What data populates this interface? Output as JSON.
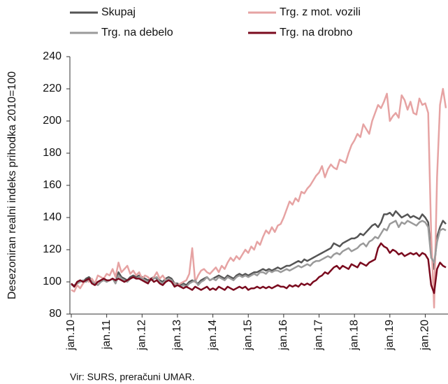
{
  "chart_data": {
    "type": "line",
    "y_label": "Desezoniran realni indeks prihodka 2010=100",
    "source": "Vir: SURS, preračuni UMAR.",
    "legend": "top",
    "categories": [
      "jan.10",
      null,
      null,
      null,
      null,
      null,
      null,
      null,
      null,
      null,
      null,
      null,
      "jan.11",
      null,
      null,
      null,
      null,
      null,
      null,
      null,
      null,
      null,
      null,
      null,
      "jan.12",
      null,
      null,
      null,
      null,
      null,
      null,
      null,
      null,
      null,
      null,
      null,
      "jan.13",
      null,
      null,
      null,
      null,
      null,
      null,
      null,
      null,
      null,
      null,
      null,
      "jan.14",
      null,
      null,
      null,
      null,
      null,
      null,
      null,
      null,
      null,
      null,
      null,
      "jan.15",
      null,
      null,
      null,
      null,
      null,
      null,
      null,
      null,
      null,
      null,
      null,
      "jan.16",
      null,
      null,
      null,
      null,
      null,
      null,
      null,
      null,
      null,
      null,
      null,
      "jan.17",
      null,
      null,
      null,
      null,
      null,
      null,
      null,
      null,
      null,
      null,
      null,
      "jan.18",
      null,
      null,
      null,
      null,
      null,
      null,
      null,
      null,
      null,
      null,
      null,
      "jan.19",
      null,
      null,
      null,
      null,
      null,
      null,
      null,
      null,
      null,
      null,
      null,
      "jan.20",
      null,
      null,
      null,
      null,
      null,
      null,
      null
    ],
    "ylim": [
      80,
      240
    ],
    "yticks": [
      80,
      100,
      120,
      140,
      160,
      180,
      200,
      220,
      240
    ],
    "series": [
      {
        "name": "Skupaj",
        "color": "#555555",
        "values": [
          99,
          97,
          100,
          101,
          100,
          102,
          103,
          101,
          99,
          100,
          101,
          102,
          101,
          101,
          102,
          100,
          106,
          103,
          102,
          101,
          103,
          104,
          103,
          104,
          103,
          102,
          101,
          102,
          103,
          102,
          101,
          100,
          102,
          103,
          102,
          99,
          99,
          98,
          99,
          98,
          100,
          101,
          100,
          99,
          101,
          102,
          103,
          101,
          102,
          103,
          104,
          103,
          102,
          104,
          103,
          102,
          104,
          105,
          104,
          105,
          104,
          105,
          106,
          106,
          107,
          108,
          107,
          108,
          107,
          108,
          109,
          108,
          109,
          110,
          110,
          111,
          112,
          113,
          112,
          114,
          113,
          114,
          115,
          116,
          117,
          118,
          119,
          120,
          121,
          124,
          123,
          122,
          124,
          125,
          126,
          127,
          127,
          128,
          130,
          129,
          131,
          133,
          135,
          136,
          134,
          137,
          142,
          142,
          143,
          141,
          144,
          142,
          140,
          141,
          142,
          140,
          141,
          140,
          139,
          142,
          140,
          137,
          118,
          108,
          128,
          134,
          138,
          136
        ]
      },
      {
        "name": "Trg. z mot. vozili",
        "color": "#e6a3a3",
        "values": [
          95,
          94,
          98,
          96,
          99,
          101,
          100,
          102,
          99,
          104,
          103,
          102,
          105,
          104,
          108,
          103,
          112,
          106,
          108,
          110,
          105,
          107,
          104,
          106,
          102,
          104,
          103,
          101,
          103,
          106,
          102,
          104,
          101,
          102,
          100,
          99,
          98,
          99,
          100,
          101,
          105,
          121,
          100,
          104,
          107,
          108,
          106,
          105,
          107,
          109,
          106,
          110,
          108,
          112,
          115,
          113,
          116,
          114,
          117,
          120,
          118,
          122,
          120,
          125,
          123,
          128,
          132,
          130,
          134,
          131,
          135,
          136,
          140,
          145,
          150,
          148,
          152,
          150,
          156,
          155,
          158,
          160,
          163,
          166,
          168,
          172,
          165,
          170,
          173,
          171,
          170,
          176,
          175,
          174,
          180,
          185,
          188,
          192,
          190,
          198,
          195,
          192,
          200,
          205,
          210,
          208,
          212,
          217,
          200,
          203,
          205,
          202,
          216,
          213,
          207,
          212,
          205,
          204,
          214,
          210,
          211,
          205,
          130,
          84,
          165,
          210,
          220,
          208
        ]
      },
      {
        "name": "Trg. na debelo",
        "color": "#9a9a9a",
        "values": [
          98,
          98,
          99,
          100,
          101,
          100,
          102,
          100,
          99,
          98,
          100,
          101,
          100,
          101,
          102,
          99,
          104,
          102,
          101,
          100,
          102,
          103,
          102,
          103,
          102,
          101,
          100,
          101,
          102,
          103,
          100,
          99,
          101,
          102,
          101,
          98,
          98,
          97,
          98,
          97,
          99,
          100,
          101,
          98,
          100,
          101,
          103,
          101,
          102,
          101,
          103,
          102,
          101,
          103,
          102,
          101,
          103,
          104,
          103,
          104,
          103,
          104,
          105,
          104,
          106,
          106,
          105,
          107,
          106,
          107,
          107,
          106,
          107,
          108,
          107,
          108,
          109,
          110,
          109,
          110,
          111,
          110,
          112,
          113,
          113,
          114,
          115,
          116,
          115,
          117,
          118,
          117,
          119,
          120,
          121,
          119,
          120,
          121,
          123,
          124,
          122,
          125,
          126,
          128,
          127,
          130,
          133,
          132,
          136,
          137,
          138,
          134,
          137,
          136,
          138,
          137,
          136,
          135,
          137,
          138,
          137,
          134,
          115,
          112,
          125,
          132,
          133,
          132
        ]
      },
      {
        "name": "Trg. na drobno",
        "color": "#7a0a1e",
        "values": [
          99,
          97,
          100,
          101,
          100,
          101,
          102,
          99,
          98,
          100,
          101,
          102,
          101,
          101,
          102,
          101,
          102,
          101,
          100,
          101,
          102,
          103,
          102,
          102,
          101,
          100,
          99,
          102,
          100,
          101,
          99,
          98,
          100,
          101,
          100,
          97,
          98,
          97,
          96,
          97,
          96,
          95,
          97,
          96,
          95,
          96,
          97,
          95,
          96,
          95,
          97,
          96,
          95,
          97,
          96,
          95,
          96,
          97,
          96,
          97,
          95,
          96,
          96,
          97,
          96,
          97,
          96,
          97,
          96,
          97,
          98,
          97,
          97,
          96,
          98,
          97,
          98,
          97,
          99,
          98,
          99,
          98,
          100,
          101,
          103,
          104,
          106,
          105,
          107,
          109,
          110,
          108,
          110,
          109,
          108,
          111,
          110,
          109,
          112,
          111,
          110,
          112,
          113,
          114,
          121,
          124,
          122,
          121,
          118,
          120,
          119,
          117,
          118,
          116,
          117,
          118,
          117,
          118,
          116,
          118,
          117,
          114,
          98,
          93,
          108,
          112,
          110,
          109
        ]
      }
    ]
  }
}
